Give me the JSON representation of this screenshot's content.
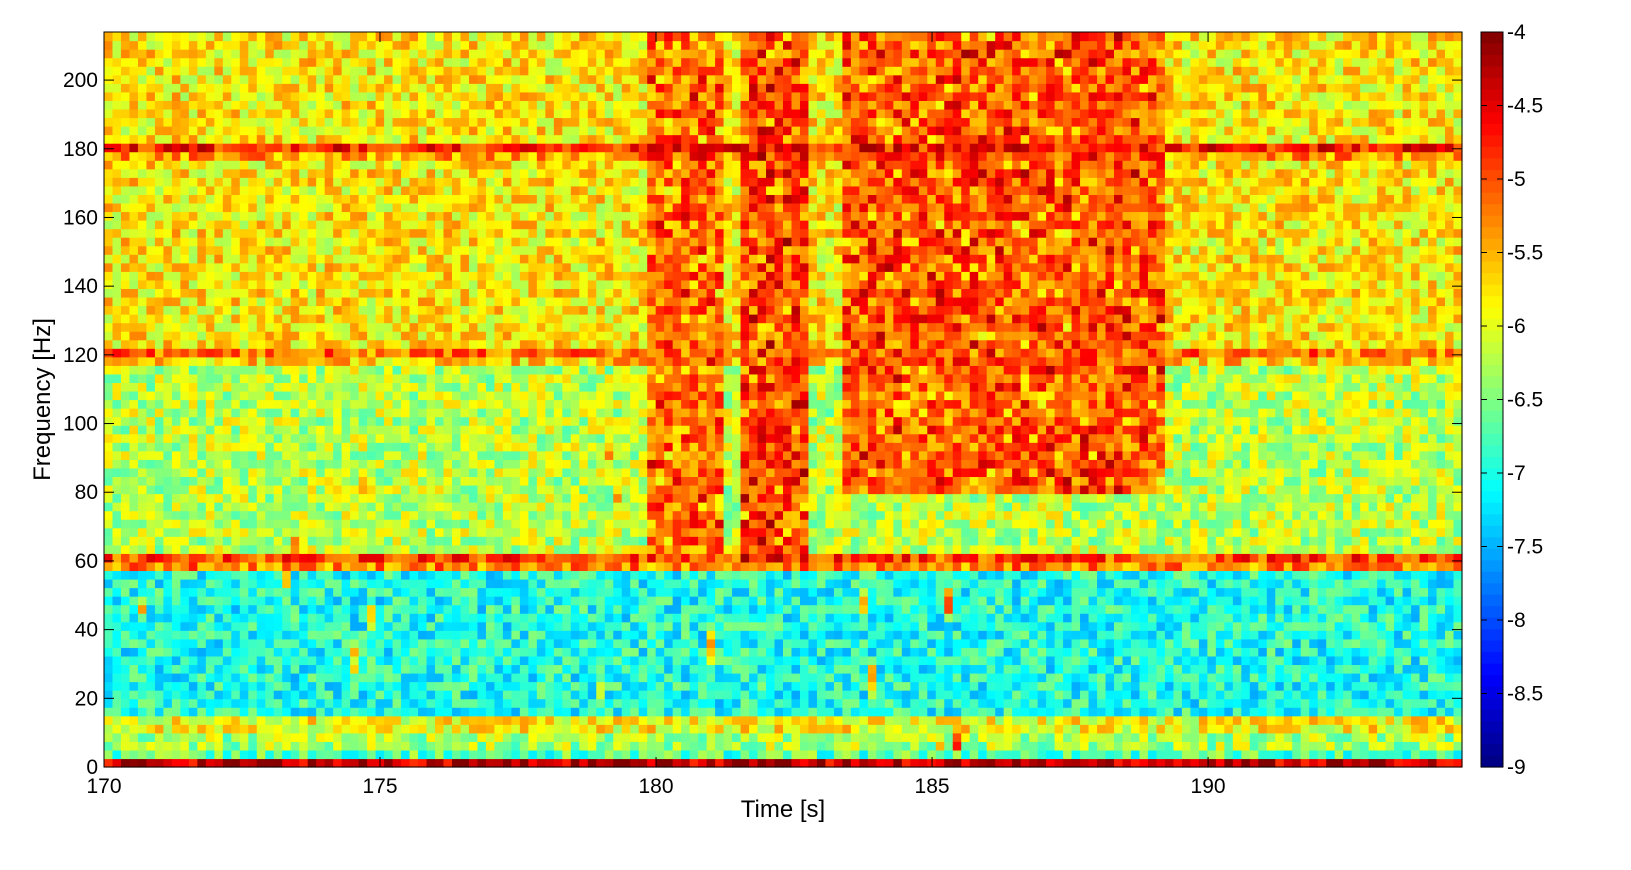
{
  "chart_data": {
    "type": "heatmap",
    "title": "",
    "xlabel": "Time [s]",
    "ylabel": "Frequency [Hz]",
    "xlim": [
      170,
      194.6
    ],
    "ylim": [
      0,
      214
    ],
    "x_ticks": [
      170,
      175,
      180,
      185,
      190
    ],
    "y_ticks": [
      0,
      20,
      40,
      60,
      80,
      100,
      120,
      140,
      160,
      180,
      200
    ],
    "colorbar": {
      "min": -9,
      "max": -4,
      "ticks": [
        -4,
        -4.5,
        -5,
        -5.5,
        -6,
        -6.5,
        -7,
        -7.5,
        -8,
        -8.5,
        -9
      ],
      "colormap": "jet"
    },
    "background_level_by_band": [
      {
        "f_min": 0,
        "f_max": 2,
        "value": -4.5
      },
      {
        "f_min": 2,
        "f_max": 5,
        "value": -6.7
      },
      {
        "f_min": 5,
        "f_max": 10,
        "value": -6.3
      },
      {
        "f_min": 10,
        "f_max": 16,
        "value": -5.9
      },
      {
        "f_min": 16,
        "f_max": 56,
        "value": -7.0
      },
      {
        "f_min": 56,
        "f_max": 120,
        "value": -6.2
      },
      {
        "f_min": 120,
        "f_max": 214,
        "value": -5.8
      }
    ],
    "line_features_hz": [
      {
        "freq": 1,
        "value": -4.3
      },
      {
        "freq": 60,
        "value": -4.7
      },
      {
        "freq": 120,
        "value": -5.1
      },
      {
        "freq": 180,
        "value": -4.7
      }
    ],
    "broadband_bursts": [
      {
        "t_start": 179.8,
        "t_end": 181.2,
        "f_min": 60,
        "f_max": 214,
        "value": -5.2
      },
      {
        "t_start": 181.5,
        "t_end": 182.7,
        "f_min": 60,
        "f_max": 214,
        "value": -5.0
      },
      {
        "t_start": 183.4,
        "t_end": 189.2,
        "f_min": 80,
        "f_max": 214,
        "value": -5.1
      }
    ],
    "arch_events": [
      {
        "t": 170.8,
        "peak_freq": 68,
        "value": -5.7
      },
      {
        "t": 173.4,
        "peak_freq": 72,
        "value": -5.6
      },
      {
        "t": 174.7,
        "peak_freq": 80,
        "value": -5.5
      },
      {
        "t": 179.2,
        "peak_freq": 98,
        "value": -5.2
      },
      {
        "t": 180.8,
        "peak_freq": 102,
        "value": -5.0
      },
      {
        "t": 182.3,
        "peak_freq": 96,
        "value": -5.1
      },
      {
        "t": 183.8,
        "peak_freq": 50,
        "value": -5.0
      },
      {
        "t": 185.3,
        "peak_freq": 48,
        "value": -5.1
      }
    ]
  }
}
